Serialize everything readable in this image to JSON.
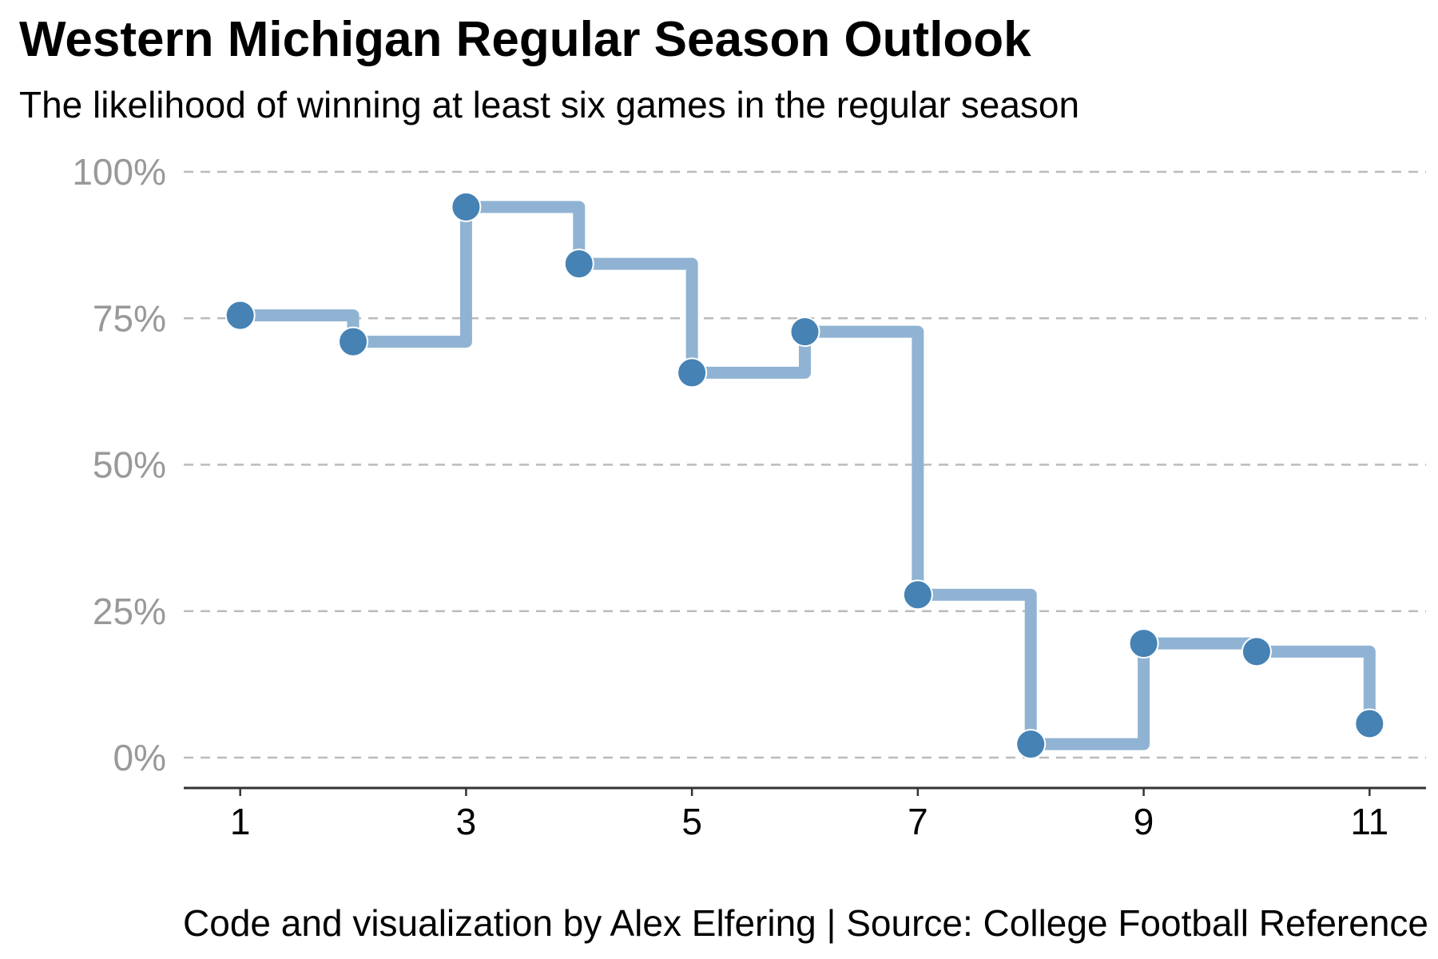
{
  "chart_data": {
    "type": "line",
    "step": "horizontal-vertical",
    "title": "Western Michigan Regular Season Outlook",
    "subtitle": "The likelihood of winning at least six games in the regular season",
    "caption": "Code and visualization by Alex Elfering | Source: College Football Reference",
    "xlabel": "",
    "ylabel": "",
    "x": [
      1,
      2,
      3,
      4,
      5,
      6,
      7,
      8,
      9,
      10,
      11
    ],
    "y": [
      0.755,
      0.71,
      0.94,
      0.843,
      0.657,
      0.727,
      0.278,
      0.023,
      0.195,
      0.181,
      0.058
    ],
    "xlim": [
      0.5,
      11.5
    ],
    "ylim": [
      0,
      1
    ],
    "x_ticks": [
      "1",
      "3",
      "5",
      "7",
      "9",
      "11"
    ],
    "x_tick_values": [
      1,
      3,
      5,
      7,
      9,
      11
    ],
    "y_ticks": [
      "0%",
      "25%",
      "50%",
      "75%",
      "100%"
    ],
    "y_tick_values": [
      0,
      0.25,
      0.5,
      0.75,
      1
    ],
    "grid": "horizontal dashed",
    "legend": "none",
    "colors": {
      "point": "#4682b4",
      "step_line": "#90b3d3",
      "grid": "#bbbbbb",
      "y_tick_text": "#999999",
      "axis": "#333333"
    }
  }
}
